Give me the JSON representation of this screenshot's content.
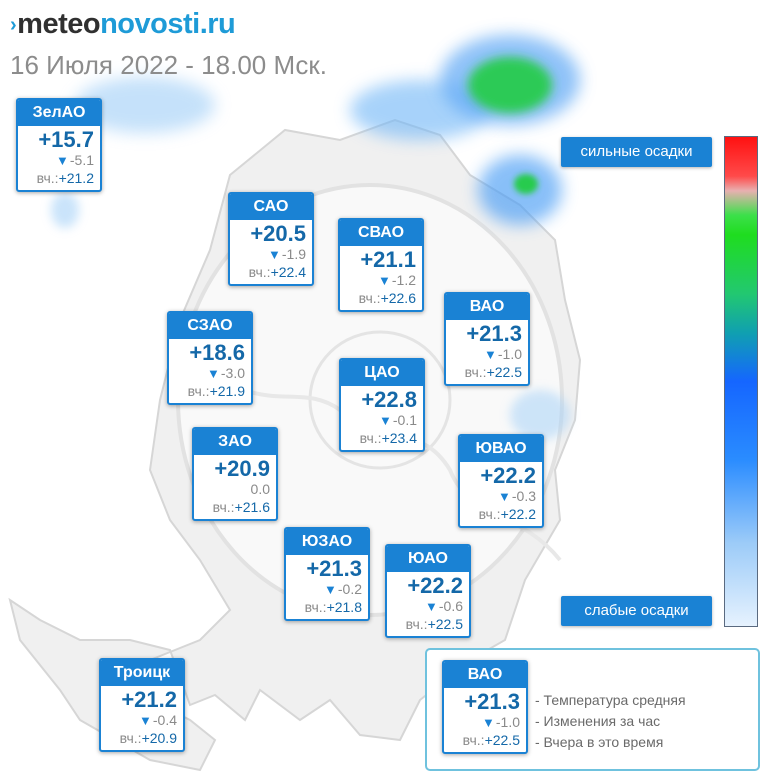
{
  "logo": {
    "mark": "›",
    "part1": "meteo",
    "part2": "novosti.ru"
  },
  "subtitle": "16 Июля 2022 - 18.00 Мск.",
  "scale": {
    "top_label": "сильные осадки",
    "bottom_label": "слабые осадки"
  },
  "districts": [
    {
      "name": "ЗелАО",
      "temp": "+15.7",
      "delta": "-5.1",
      "arrow": "▼",
      "yesterday_label": "вч.:",
      "yesterday": "+21.2"
    },
    {
      "name": "САО",
      "temp": "+20.5",
      "delta": "-1.9",
      "arrow": "▼",
      "yesterday_label": "вч.:",
      "yesterday": "+22.4"
    },
    {
      "name": "СВАО",
      "temp": "+21.1",
      "delta": "-1.2",
      "arrow": "▼",
      "yesterday_label": "вч.:",
      "yesterday": "+22.6"
    },
    {
      "name": "ВАО",
      "temp": "+21.3",
      "delta": "-1.0",
      "arrow": "▼",
      "yesterday_label": "вч.:",
      "yesterday": "+22.5"
    },
    {
      "name": "СЗАО",
      "temp": "+18.6",
      "delta": "-3.0",
      "arrow": "▼",
      "yesterday_label": "вч.:",
      "yesterday": "+21.9"
    },
    {
      "name": "ЦАО",
      "temp": "+22.8",
      "delta": "-0.1",
      "arrow": "▼",
      "yesterday_label": "вч.:",
      "yesterday": "+23.4"
    },
    {
      "name": "ЗАО",
      "temp": "+20.9",
      "delta": "0.0",
      "arrow": "",
      "yesterday_label": "вч.:",
      "yesterday": "+21.6"
    },
    {
      "name": "ЮВАО",
      "temp": "+22.2",
      "delta": "-0.3",
      "arrow": "▼",
      "yesterday_label": "вч.:",
      "yesterday": "+22.2"
    },
    {
      "name": "ЮЗАО",
      "temp": "+21.3",
      "delta": "-0.2",
      "arrow": "▼",
      "yesterday_label": "вч.:",
      "yesterday": "+21.8"
    },
    {
      "name": "ЮАО",
      "temp": "+22.2",
      "delta": "-0.6",
      "arrow": "▼",
      "yesterday_label": "вч.:",
      "yesterday": "+22.5"
    },
    {
      "name": "Троицк",
      "temp": "+21.2",
      "delta": "-0.4",
      "arrow": "▼",
      "yesterday_label": "вч.:",
      "yesterday": "+20.9"
    }
  ],
  "legend": {
    "sample": {
      "name": "ВАО",
      "temp": "+21.3",
      "delta": "-1.0",
      "arrow": "▼",
      "yesterday_label": "вч.:",
      "yesterday": "+22.5"
    },
    "items": [
      "- Температура средняя",
      "- Изменения за час",
      "- Вчера в это время"
    ]
  },
  "colors": {
    "card_blue": "#1a82d4",
    "temp_text": "#1468a8",
    "logo_blue": "#1e9bd7",
    "legend_border": "#6fc2de"
  }
}
